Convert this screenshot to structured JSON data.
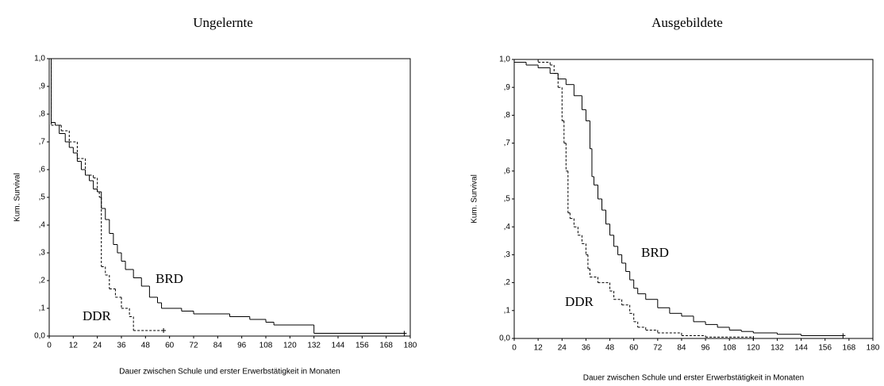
{
  "chart_data": [
    {
      "type": "line",
      "step": true,
      "title": "Ungelernte",
      "x_label": "Dauer zwischen Schule und erster Erwerbstätigkeit in Monaten",
      "y_label": "Kum. Survival",
      "xlim": [
        0,
        180
      ],
      "ylim": [
        0,
        1
      ],
      "xticks": [
        0,
        12,
        24,
        36,
        48,
        60,
        72,
        84,
        96,
        108,
        120,
        132,
        144,
        156,
        168,
        180
      ],
      "yticks": [
        {
          "value": 0,
          "label": "0,0"
        },
        {
          "value": 0.1,
          "label": ",1"
        },
        {
          "value": 0.2,
          "label": ",2"
        },
        {
          "value": 0.3,
          "label": ",3"
        },
        {
          "value": 0.4,
          "label": ",4"
        },
        {
          "value": 0.5,
          "label": ",5"
        },
        {
          "value": 0.6,
          "label": ",6"
        },
        {
          "value": 0.7,
          "label": ",7"
        },
        {
          "value": 0.8,
          "label": ",8"
        },
        {
          "value": 0.9,
          "label": ",9"
        },
        {
          "value": 1,
          "label": "1,0"
        }
      ],
      "annotations": [
        "BRD",
        "DDR"
      ],
      "series": [
        {
          "color": "#000000",
          "dashed": false,
          "x": [
            0,
            1,
            3,
            5,
            8,
            10,
            12,
            14,
            16,
            18,
            20,
            22,
            24,
            26,
            28,
            30,
            32,
            34,
            36,
            38,
            42,
            46,
            50,
            54,
            56,
            66,
            72,
            90,
            100,
            108,
            112,
            132,
            177
          ],
          "values": [
            1.0,
            0.77,
            0.76,
            0.73,
            0.7,
            0.68,
            0.66,
            0.63,
            0.6,
            0.58,
            0.56,
            0.53,
            0.52,
            0.46,
            0.42,
            0.37,
            0.33,
            0.3,
            0.27,
            0.24,
            0.21,
            0.18,
            0.14,
            0.12,
            0.1,
            0.09,
            0.08,
            0.07,
            0.06,
            0.05,
            0.04,
            0.01,
            0.01
          ]
        },
        {
          "color": "#000000",
          "dashed": true,
          "x": [
            0,
            1,
            6,
            10,
            14,
            18,
            22,
            24,
            25,
            26,
            28,
            30,
            33,
            36,
            40,
            42,
            57
          ],
          "values": [
            1.0,
            0.76,
            0.74,
            0.7,
            0.64,
            0.58,
            0.57,
            0.52,
            0.5,
            0.25,
            0.22,
            0.17,
            0.14,
            0.1,
            0.07,
            0.02,
            0.02
          ]
        }
      ]
    },
    {
      "type": "line",
      "step": true,
      "title": "Ausgebildete",
      "x_label": "Dauer zwischen Schule und erster Erwerbstätigkeit in Monaten",
      "y_label": "Kum. Survival",
      "xlim": [
        0,
        180
      ],
      "ylim": [
        0,
        1
      ],
      "xticks": [
        0,
        12,
        24,
        36,
        48,
        60,
        72,
        84,
        96,
        108,
        120,
        132,
        144,
        156,
        168,
        180
      ],
      "yticks": [
        {
          "value": 0,
          "label": "0,0"
        },
        {
          "value": 0.1,
          "label": ",1"
        },
        {
          "value": 0.2,
          "label": ",2"
        },
        {
          "value": 0.3,
          "label": ",3"
        },
        {
          "value": 0.4,
          "label": ",4"
        },
        {
          "value": 0.5,
          "label": ",5"
        },
        {
          "value": 0.6,
          "label": ",6"
        },
        {
          "value": 0.7,
          "label": ",7"
        },
        {
          "value": 0.8,
          "label": ",8"
        },
        {
          "value": 0.9,
          "label": ",9"
        },
        {
          "value": 1,
          "label": "1,0"
        }
      ],
      "annotations": [
        "BRD",
        "DDR"
      ],
      "series": [
        {
          "color": "#000000",
          "dashed": false,
          "x": [
            0,
            6,
            12,
            18,
            22,
            26,
            30,
            34,
            36,
            38,
            39,
            40,
            42,
            44,
            46,
            48,
            50,
            52,
            54,
            56,
            58,
            60,
            62,
            66,
            72,
            78,
            84,
            90,
            96,
            102,
            108,
            114,
            120,
            132,
            144,
            165
          ],
          "values": [
            0.99,
            0.98,
            0.97,
            0.95,
            0.93,
            0.91,
            0.87,
            0.82,
            0.78,
            0.68,
            0.58,
            0.55,
            0.5,
            0.46,
            0.41,
            0.37,
            0.33,
            0.3,
            0.27,
            0.24,
            0.21,
            0.18,
            0.16,
            0.14,
            0.11,
            0.09,
            0.08,
            0.06,
            0.05,
            0.04,
            0.03,
            0.025,
            0.02,
            0.015,
            0.01,
            0.01
          ]
        },
        {
          "color": "#000000",
          "dashed": true,
          "x": [
            0,
            12,
            18,
            20,
            22,
            24,
            25,
            26,
            27,
            28,
            30,
            32,
            34,
            36,
            37,
            38,
            42,
            48,
            50,
            54,
            58,
            60,
            62,
            66,
            72,
            84,
            96,
            120
          ],
          "values": [
            1.0,
            0.99,
            0.98,
            0.95,
            0.9,
            0.78,
            0.7,
            0.6,
            0.45,
            0.43,
            0.4,
            0.37,
            0.34,
            0.3,
            0.25,
            0.22,
            0.2,
            0.17,
            0.14,
            0.12,
            0.09,
            0.06,
            0.04,
            0.03,
            0.02,
            0.01,
            0.005,
            0.0
          ]
        }
      ]
    }
  ]
}
